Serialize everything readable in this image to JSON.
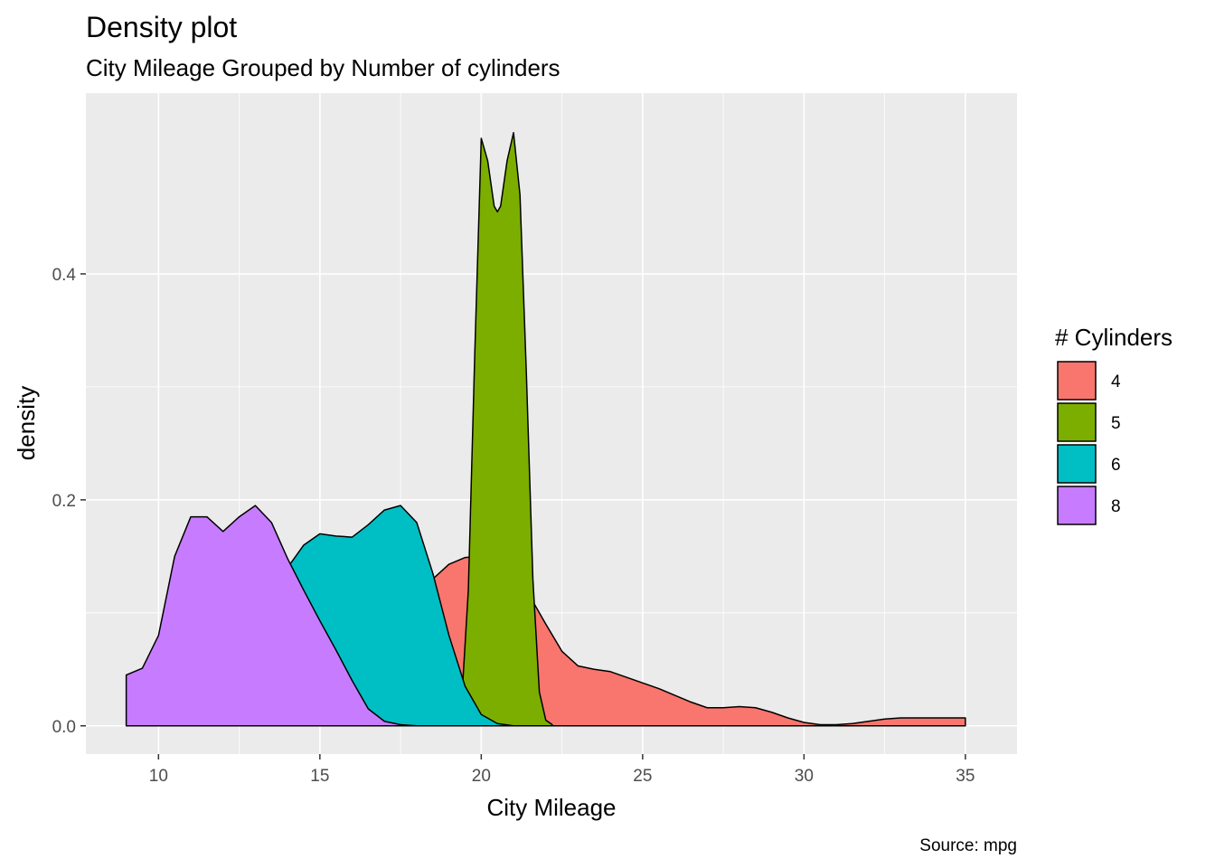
{
  "chart_data": {
    "type": "area",
    "title": "Density plot",
    "subtitle": "City Mileage Grouped by Number of cylinders",
    "xlabel": "City Mileage",
    "ylabel": "density",
    "caption": "Source: mpg",
    "xlim": [
      7.75,
      36.6
    ],
    "ylim": [
      -0.025,
      0.56
    ],
    "x_ticks": [
      10,
      15,
      20,
      25,
      30,
      35
    ],
    "x_tick_labels": [
      "10",
      "15",
      "20",
      "25",
      "30",
      "35"
    ],
    "y_ticks": [
      0.0,
      0.2,
      0.4
    ],
    "y_tick_labels": [
      "0.0",
      "0.2",
      "0.4"
    ],
    "grid": true,
    "panel_background": "#EBEBEB",
    "outline_color": "#000000",
    "legend": {
      "title": "# Cylinders",
      "position": "right"
    },
    "series": [
      {
        "name": "4",
        "color": "#F8766D",
        "x": [
          18.5,
          19.0,
          19.5,
          19.9,
          20.5,
          21.0,
          21.5,
          22.0,
          22.5,
          23.0,
          23.5,
          24.0,
          24.5,
          25.0,
          25.5,
          26.0,
          26.5,
          27.0,
          27.5,
          28.0,
          28.5,
          29.0,
          29.5,
          30.0,
          30.5,
          31.0,
          31.5,
          32.0,
          32.5,
          33.0,
          33.5,
          34.0,
          34.5,
          35.0
        ],
        "y": [
          0.13,
          0.143,
          0.149,
          0.15,
          0.147,
          0.136,
          0.115,
          0.09,
          0.066,
          0.053,
          0.05,
          0.048,
          0.043,
          0.038,
          0.033,
          0.027,
          0.021,
          0.016,
          0.016,
          0.017,
          0.016,
          0.012,
          0.007,
          0.003,
          0.001,
          0.001,
          0.002,
          0.004,
          0.006,
          0.007,
          0.007,
          0.007,
          0.007,
          0.007
        ]
      },
      {
        "name": "5",
        "color": "#7CAE00",
        "x": [
          18.8,
          19.0,
          19.2,
          19.4,
          19.6,
          19.8,
          20.0,
          20.2,
          20.4,
          20.5,
          20.6,
          20.8,
          21.0,
          21.2,
          21.4,
          21.6,
          21.8,
          22.0,
          22.2
        ],
        "y": [
          0.0,
          0.001,
          0.005,
          0.025,
          0.12,
          0.33,
          0.52,
          0.5,
          0.46,
          0.455,
          0.46,
          0.5,
          0.525,
          0.47,
          0.31,
          0.13,
          0.03,
          0.005,
          0.001
        ]
      },
      {
        "name": "6",
        "color": "#00BFC4",
        "x": [
          14.0,
          14.5,
          15.0,
          15.5,
          16.0,
          16.5,
          17.0,
          17.5,
          18.0,
          18.5,
          19.0,
          19.5,
          20.0,
          20.5,
          21.0
        ],
        "y": [
          0.14,
          0.16,
          0.17,
          0.168,
          0.167,
          0.178,
          0.191,
          0.195,
          0.18,
          0.135,
          0.08,
          0.035,
          0.01,
          0.002,
          0.0
        ]
      },
      {
        "name": "8",
        "color": "#C77CFF",
        "x": [
          9.0,
          9.5,
          10.0,
          10.5,
          11.0,
          11.5,
          12.0,
          12.5,
          13.0,
          13.5,
          14.0,
          14.5,
          15.0,
          15.5,
          16.0,
          16.5,
          17.0,
          17.5,
          18.0
        ],
        "y": [
          0.045,
          0.051,
          0.08,
          0.15,
          0.185,
          0.185,
          0.172,
          0.185,
          0.195,
          0.18,
          0.148,
          0.12,
          0.093,
          0.067,
          0.04,
          0.015,
          0.004,
          0.001,
          0.0
        ]
      }
    ]
  }
}
